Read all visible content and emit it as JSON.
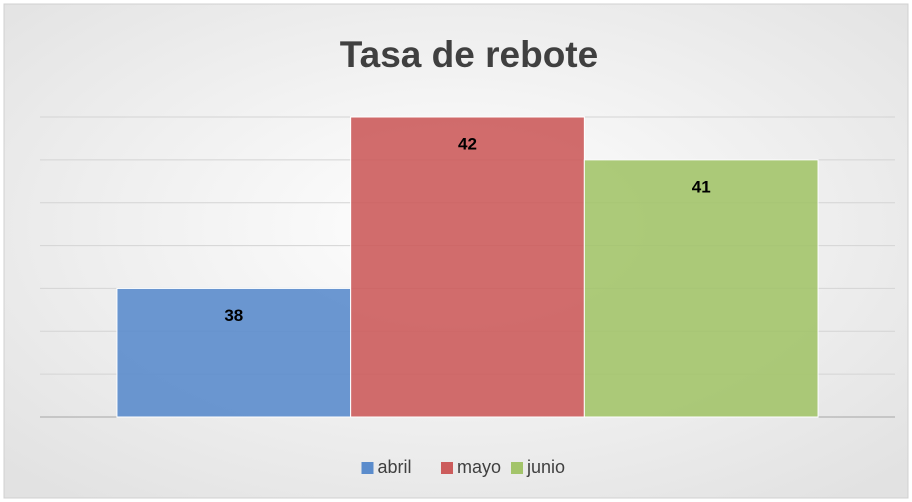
{
  "chart_data": {
    "type": "bar",
    "title": "Tasa de rebote",
    "categories": [
      null
    ],
    "series": [
      {
        "name": "abril",
        "color": "#5b8ccc",
        "values": [
          38
        ]
      },
      {
        "name": "mayo",
        "color": "#cc5c5c",
        "values": [
          42
        ]
      },
      {
        "name": "junio",
        "color": "#a3c46a",
        "values": [
          41
        ]
      }
    ],
    "ylim": [
      35,
      42
    ],
    "yticks": [
      35,
      36,
      37,
      38,
      39,
      40,
      41,
      42
    ],
    "grid": true,
    "legend": "bottom"
  }
}
